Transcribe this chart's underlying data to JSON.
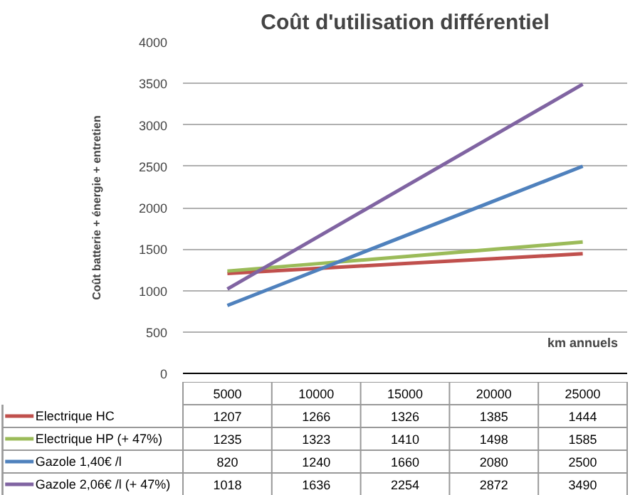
{
  "chart_data": {
    "type": "line",
    "title": "Coût d'utilisation différentiel",
    "ylabel": "Coût batterie + énergie + entretien",
    "xlabel": "km annuels",
    "categories": [
      "5000",
      "10000",
      "15000",
      "20000",
      "25000"
    ],
    "series": [
      {
        "name": "Electrique HC",
        "color": "#c0504d",
        "values": [
          1207,
          1266,
          1326,
          1385,
          1444
        ]
      },
      {
        "name": "Electrique HP (+ 47%)",
        "color": "#9bbb59",
        "values": [
          1235,
          1323,
          1410,
          1498,
          1585
        ]
      },
      {
        "name": "Gazole 1,40€ /l",
        "color": "#4f81bd",
        "values": [
          820,
          1240,
          1660,
          2080,
          2500
        ]
      },
      {
        "name": "Gazole 2,06€ /l (+ 47%)",
        "color": "#8064a2",
        "values": [
          1018,
          1636,
          2254,
          2872,
          3490
        ]
      }
    ],
    "ylim": [
      0,
      4000
    ],
    "yticks": [
      0,
      500,
      1000,
      1500,
      2000,
      2500,
      3000,
      3500,
      4000
    ],
    "grid": "y",
    "tick_labels": "y",
    "legend": "bottom",
    "data_labels": true
  }
}
